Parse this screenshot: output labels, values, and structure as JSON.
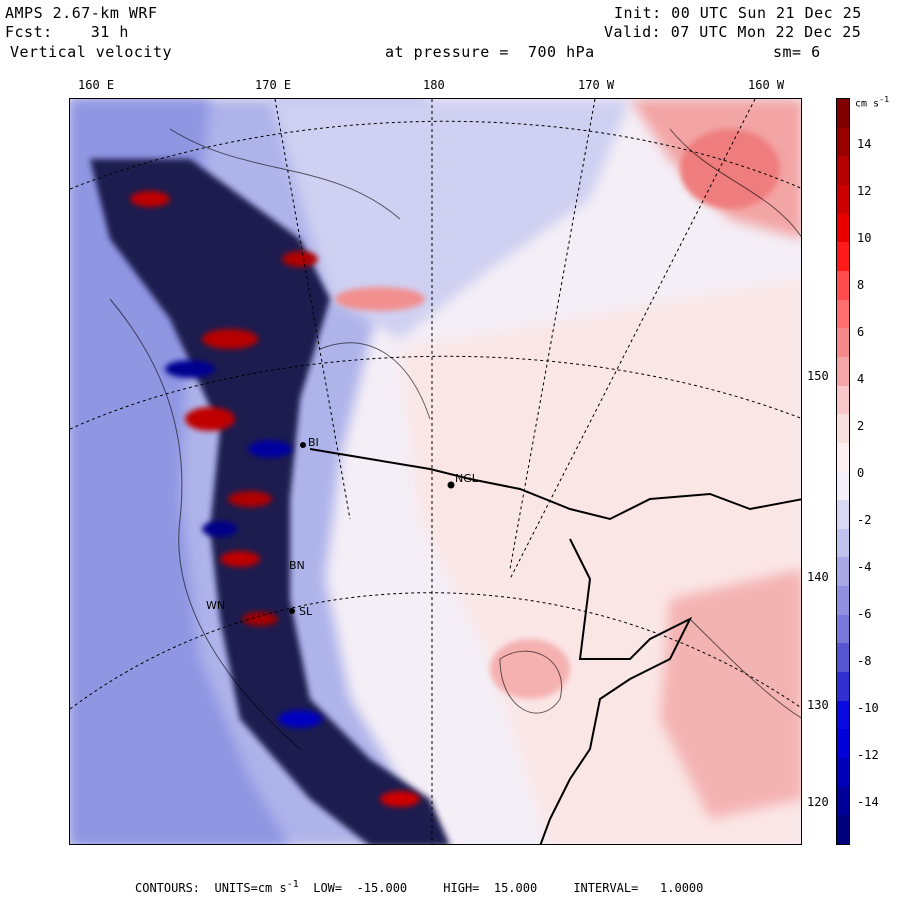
{
  "header": {
    "model": "AMPS 2.67-km WRF",
    "fcst": "Fcst:    31 h",
    "field": "Vertical velocity",
    "init": "Init: 00 UTC Sun 21 Dec 25",
    "valid": "Valid: 07 UTC Mon 22 Dec 25",
    "pressure": "at pressure =  700 hPa",
    "smoothing": "sm= 6"
  },
  "longitude_labels": [
    "160 E",
    "170 E",
    "180",
    "170 W",
    "160 W"
  ],
  "latitude_labels": [
    "150 W",
    "140 W",
    "130 W",
    "120 W"
  ],
  "stations": [
    "BI",
    "NGL",
    "BN",
    "SL",
    "WN"
  ],
  "colorbar": {
    "units": "cm s",
    "units_exp": "-1",
    "ticks": [
      "14",
      "12",
      "10",
      "8",
      "6",
      "4",
      "2",
      "0",
      "-2",
      "-4",
      "-6",
      "-8",
      "-10",
      "-12",
      "-14"
    ],
    "colors": [
      "#7f0000",
      "#990000",
      "#b30000",
      "#cc0000",
      "#e60000",
      "#ff1a1a",
      "#ff4d4d",
      "#ff7070",
      "#f58a8a",
      "#f4a6a6",
      "#f8c8c8",
      "#fbe0e0",
      "#fdf0f0",
      "#f3f0fa",
      "#d8d8f4",
      "#c2c2ee",
      "#a8a8e6",
      "#9090e0",
      "#7878d8",
      "#5555d0",
      "#3030d0",
      "#0a0ae0",
      "#0000d8",
      "#0000b8",
      "#000098",
      "#00007a"
    ]
  },
  "footer": {
    "contours": "CONTOURS:",
    "units": "UNITS=cm s",
    "units_exp": "-1",
    "low": "LOW=  -15.000",
    "high": "HIGH=  15.000",
    "interval": "INTERVAL=   1.0000"
  }
}
